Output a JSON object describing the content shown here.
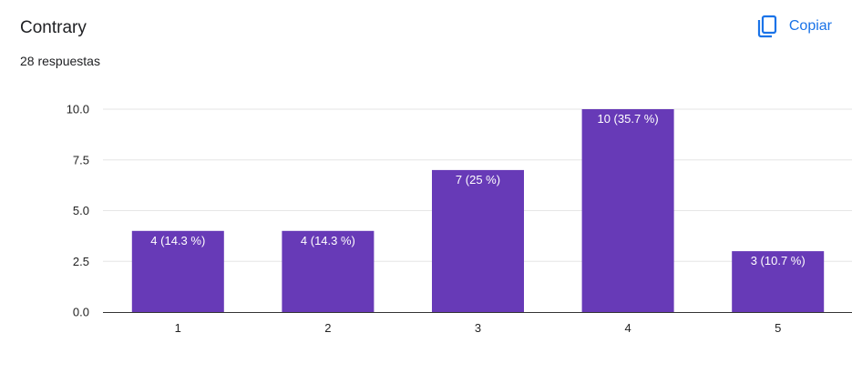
{
  "header": {
    "title": "Contrary",
    "responses": "28 respuestas",
    "copy_label": "Copiar",
    "copy_icon": "copy-icon",
    "accent": "#1a73e8"
  },
  "chart_data": {
    "type": "bar",
    "categories": [
      "1",
      "2",
      "3",
      "4",
      "5"
    ],
    "values": [
      4,
      4,
      7,
      10,
      3
    ],
    "data_labels": [
      "4 (14.3 %)",
      "4 (14.3 %)",
      "7 (25 %)",
      "10 (35.7 %)",
      "3 (10.7 %)"
    ],
    "ylim": [
      0,
      10
    ],
    "yticks": [
      0,
      2.5,
      5,
      7.5,
      10
    ],
    "ytick_labels": [
      "0.0",
      "2.5",
      "5.0",
      "7.5",
      "10.0"
    ],
    "bar_color": "#673ab7",
    "grid": true
  }
}
